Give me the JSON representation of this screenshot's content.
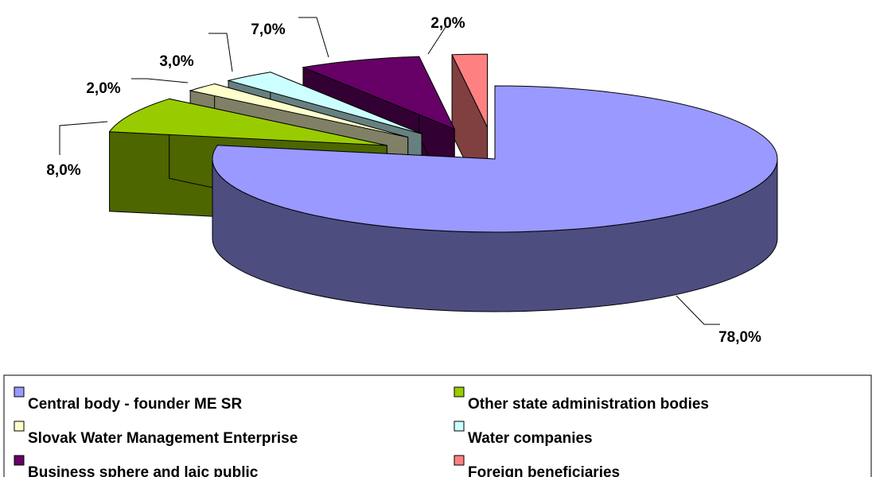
{
  "chart_data": {
    "type": "pie",
    "categories": [
      "Central body - founder ME SR",
      "Other state administration bodies",
      "Slovak Water Management Enterprise",
      "Water companies",
      "Business sphere and laic public",
      "Foreign beneficiaries"
    ],
    "values": [
      78,
      8,
      2,
      3,
      7,
      2
    ],
    "value_labels": [
      "78,0%",
      "8,0%",
      "2,0%",
      "3,0%",
      "7,0%",
      "2,0%"
    ],
    "colors": [
      "#9999ff",
      "#99cc00",
      "#ffffcc",
      "#ccffff",
      "#660066",
      "#ff8080"
    ],
    "legend": "bottom"
  }
}
